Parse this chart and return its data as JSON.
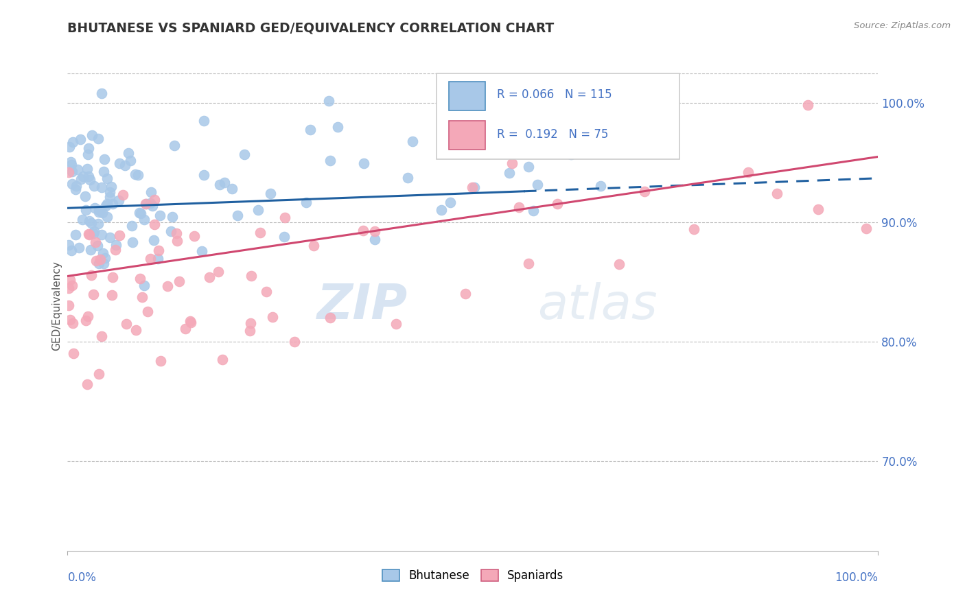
{
  "title": "BHUTANESE VS SPANIARD GED/EQUIVALENCY CORRELATION CHART",
  "source": "Source: ZipAtlas.com",
  "ylabel": "GED/Equivalency",
  "xmin": 0.0,
  "xmax": 1.0,
  "ymin": 0.625,
  "ymax": 1.035,
  "yticks": [
    0.7,
    0.8,
    0.9,
    1.0
  ],
  "ytick_labels": [
    "70.0%",
    "80.0%",
    "90.0%",
    "100.0%"
  ],
  "blue_R": 0.066,
  "blue_N": 115,
  "pink_R": 0.192,
  "pink_N": 75,
  "blue_color": "#a8c8e8",
  "pink_color": "#f4a8b8",
  "blue_line_color": "#2060a0",
  "pink_line_color": "#d04870",
  "legend_label_blue": "Bhutanese",
  "legend_label_pink": "Spaniards",
  "watermark_zip": "ZIP",
  "watermark_atlas": "atlas",
  "title_color": "#333333",
  "axis_label_color": "#4472c4",
  "ylabel_color": "#555555"
}
